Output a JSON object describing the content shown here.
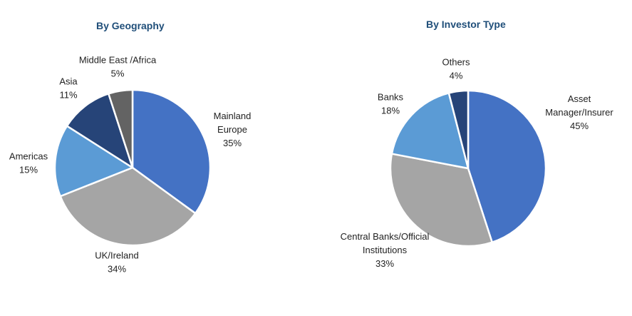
{
  "chart_data": [
    {
      "type": "pie",
      "title": "By Geography",
      "categories": [
        "Mainland Europe",
        "UK/Ireland",
        "Americas",
        "Asia",
        "Middle East /Africa"
      ],
      "values": [
        35,
        34,
        15,
        11,
        5
      ],
      "labels": [
        {
          "lines": [
            "Mainland",
            "Europe",
            "35%"
          ]
        },
        {
          "lines": [
            "UK/Ireland",
            "34%"
          ]
        },
        {
          "lines": [
            "Americas",
            "15%"
          ]
        },
        {
          "lines": [
            "Asia",
            "11%"
          ]
        },
        {
          "lines": [
            "Middle East /Africa",
            "5%"
          ]
        }
      ],
      "colors": [
        "#4472c4",
        "#a5a5a5",
        "#5b9bd5",
        "#264478",
        "#636363"
      ],
      "start_angle_deg": 0,
      "direction": "clockwise"
    },
    {
      "type": "pie",
      "title": "By Investor Type",
      "categories": [
        "Asset Manager/Insurer",
        "Central Banks/Official Institutions",
        "Banks",
        "Others"
      ],
      "values": [
        45,
        33,
        18,
        4
      ],
      "labels": [
        {
          "lines": [
            "Asset",
            "Manager/Insurer",
            "45%"
          ]
        },
        {
          "lines": [
            "Central Banks/Official",
            "Institutions",
            "33%"
          ]
        },
        {
          "lines": [
            "Banks",
            "18%"
          ]
        },
        {
          "lines": [
            "Others",
            "4%"
          ]
        }
      ],
      "colors": [
        "#4472c4",
        "#a5a5a5",
        "#5b9bd5",
        "#264478"
      ],
      "start_angle_deg": 0,
      "direction": "clockwise"
    }
  ]
}
